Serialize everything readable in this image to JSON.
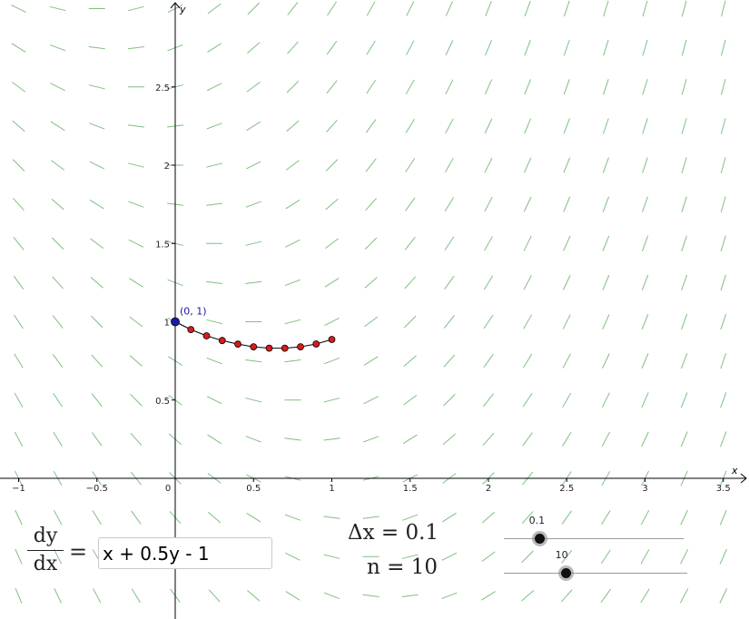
{
  "chart_data": {
    "type": "scatter",
    "title": "",
    "xlabel": "x",
    "ylabel": "y",
    "xlim": [
      -1.1,
      3.7
    ],
    "ylim": [
      -0.9,
      3.05
    ],
    "x_ticks": [
      -1,
      -0.5,
      0,
      0.5,
      1,
      1.5,
      2,
      2.5,
      3,
      3.5
    ],
    "x_tick_labels": [
      "−1",
      "−0.5",
      "0",
      "0.5",
      "1",
      "1.5",
      "2",
      "2.5",
      "3",
      "3.5"
    ],
    "y_ticks": [
      0.5,
      1,
      1.5,
      2,
      2.5
    ],
    "y_tick_labels": [
      "0.5",
      "1",
      "1.5",
      "2",
      "2.5"
    ],
    "slope_field": {
      "expression": "x + 0.5y - 1",
      "color": "#7fbf7f",
      "x_step": 0.25,
      "y_step": 0.25
    },
    "initial_point": {
      "x": 0,
      "y": 1,
      "label": "(0, 1)",
      "color": "#1a1aa6"
    },
    "euler_points": {
      "color": "#d81b1b",
      "x": [
        0,
        0.1,
        0.2,
        0.3,
        0.4,
        0.5,
        0.6,
        0.7,
        0.8,
        0.9,
        1.0
      ],
      "y": [
        1.0,
        0.95,
        0.91,
        0.88,
        0.857,
        0.84,
        0.831,
        0.831,
        0.84,
        0.858,
        0.887
      ]
    },
    "grid": false
  },
  "controls": {
    "dydx_num": "dy",
    "dydx_den": "dx",
    "equals": "=",
    "function_value": "x + 0.5y - 1",
    "dx_label": "Δx = 0.1",
    "n_label": "n = 10",
    "slider_dx": {
      "value_label": "0.1",
      "fraction": 0.2
    },
    "slider_n": {
      "value_label": "10",
      "fraction": 0.34
    }
  }
}
